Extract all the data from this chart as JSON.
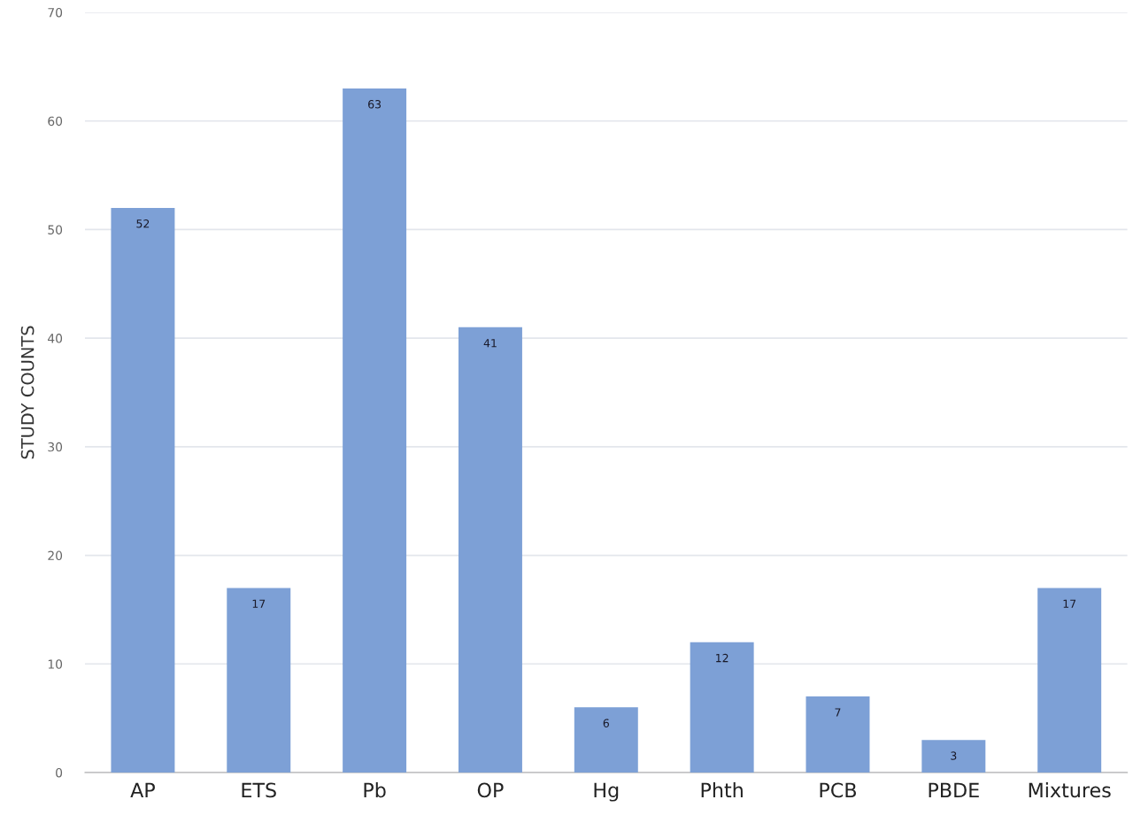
{
  "chart_data": {
    "type": "bar",
    "ylabel": "STUDY COUNTS",
    "categories": [
      "AP",
      "ETS",
      "Pb",
      "OP",
      "Hg",
      "Phth",
      "PCB",
      "PBDE",
      "Mixtures"
    ],
    "values": [
      52,
      17,
      63,
      41,
      6,
      12,
      7,
      3,
      17
    ],
    "color": "#7da0d6",
    "ylim": [
      0,
      70
    ],
    "yticks": [
      0,
      10,
      20,
      30,
      40,
      50,
      60,
      70
    ],
    "grid": "y",
    "data_labels": true
  }
}
